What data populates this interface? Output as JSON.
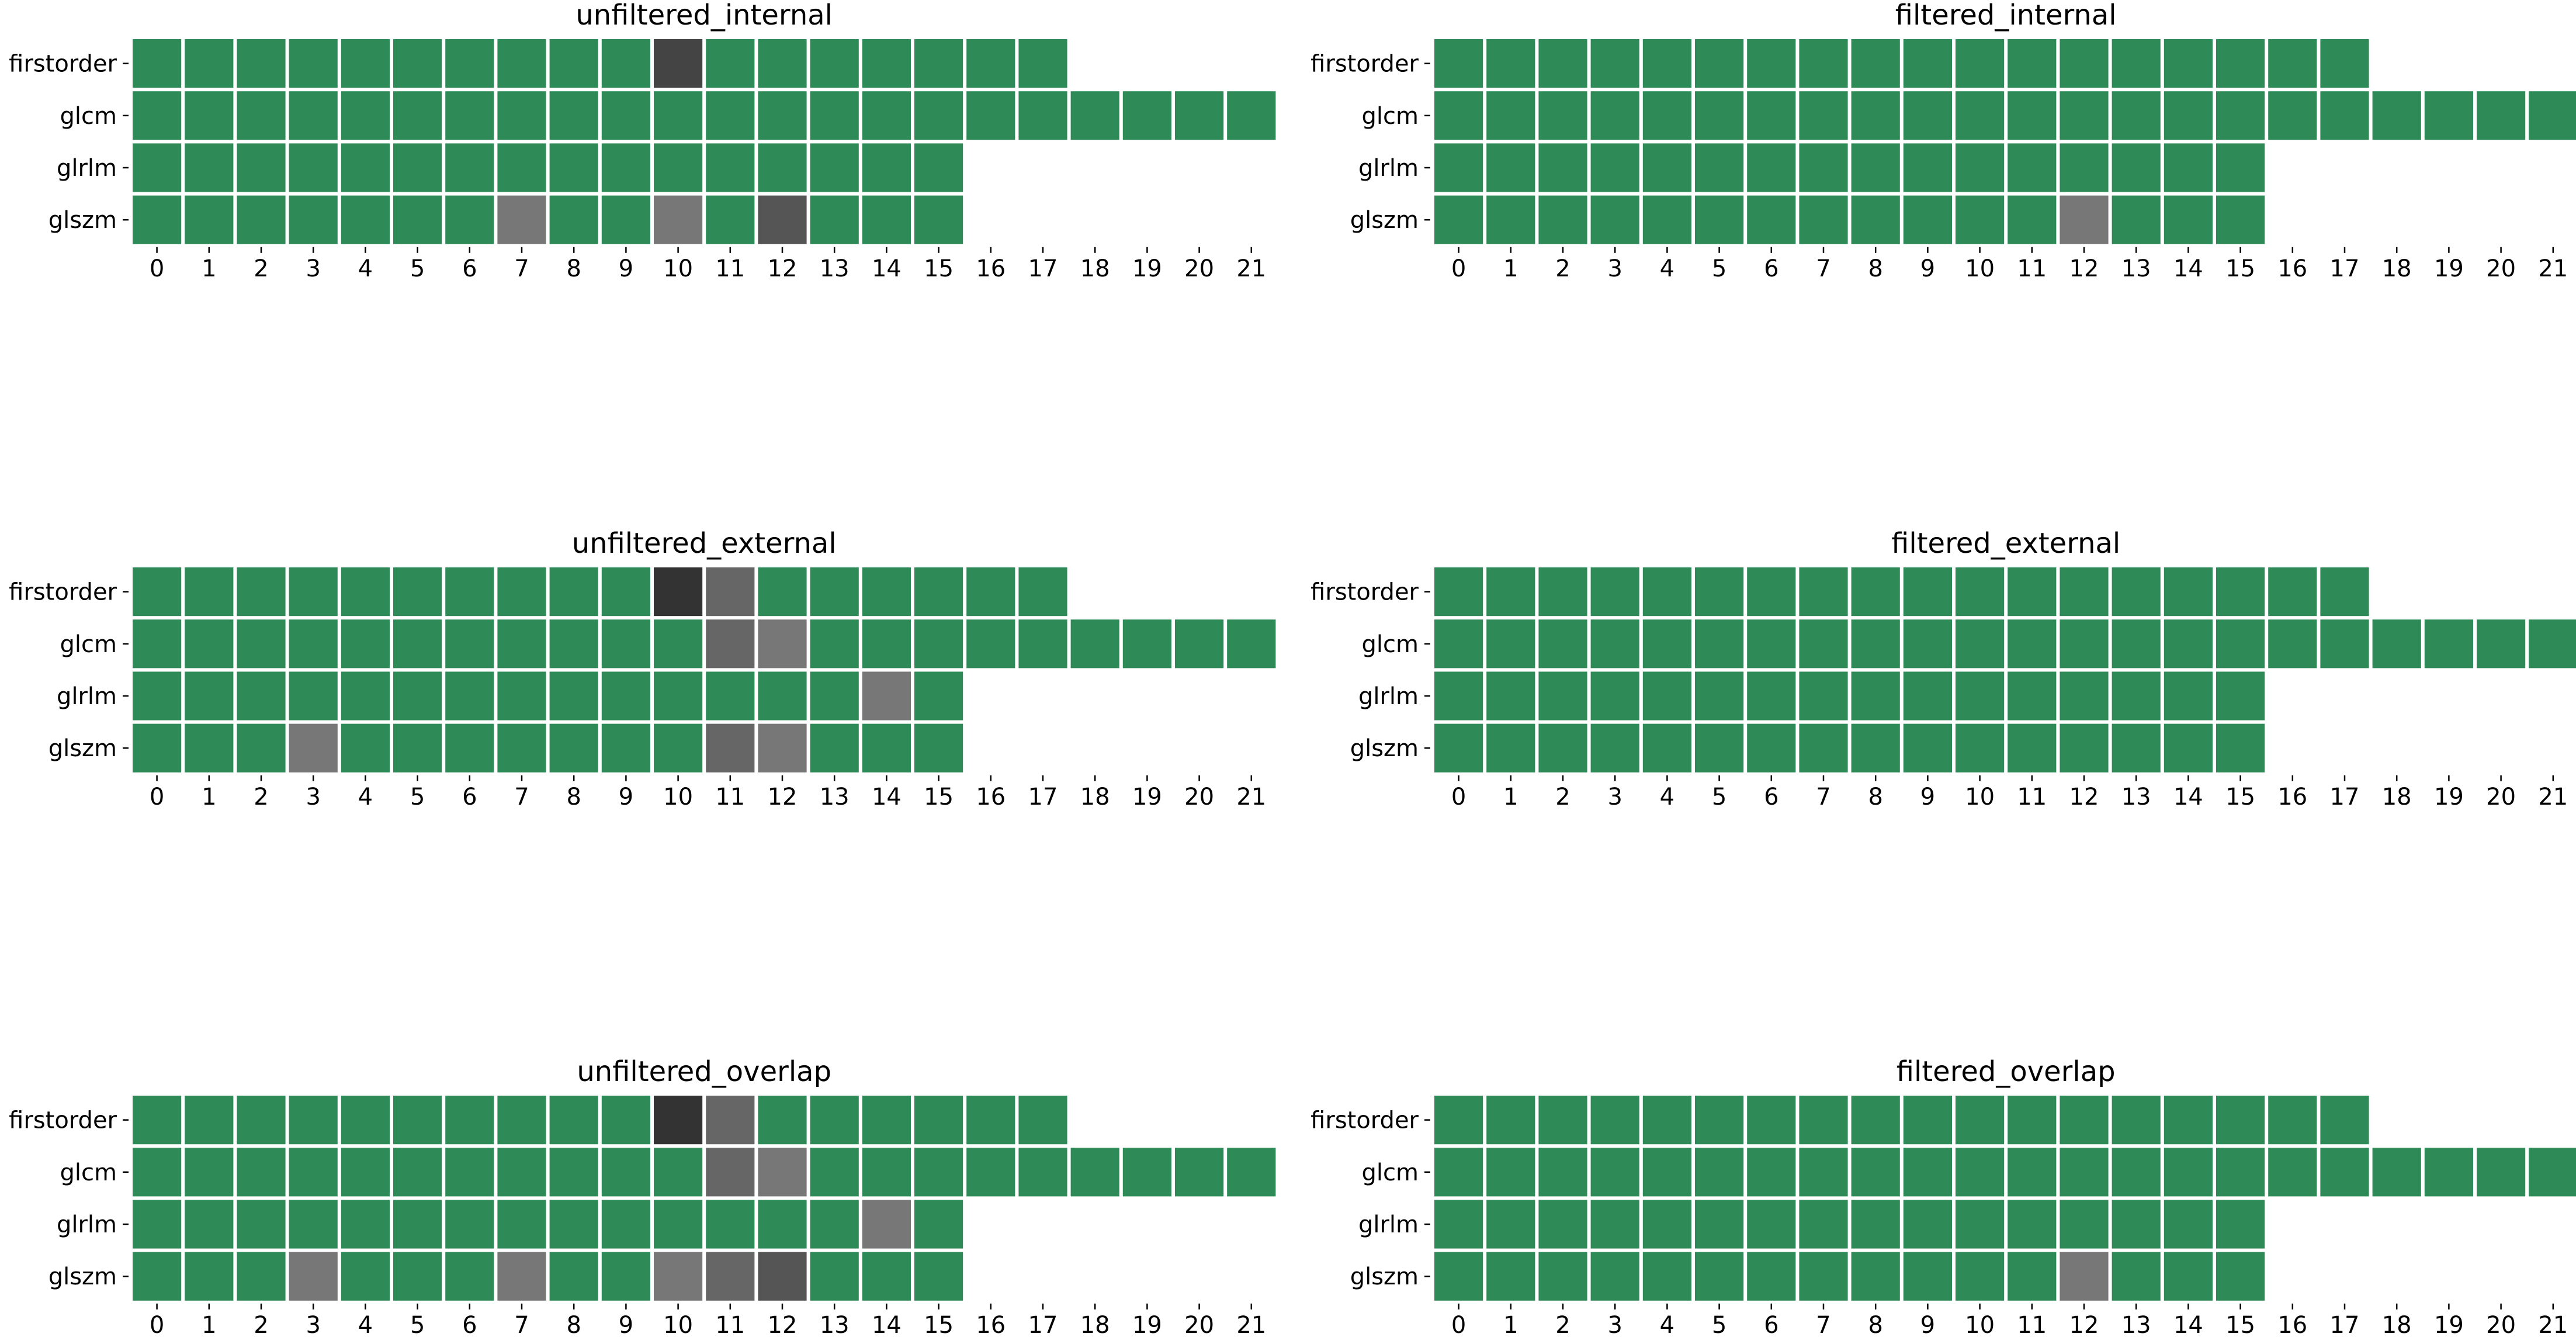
{
  "palette": {
    "good": "#2e8b57",
    "light_gray": "#777777",
    "mid_gray": "#666666",
    "dark_gray": "#555555",
    "darker_gray": "#444444",
    "darkest_gray": "#333333",
    "grid_line": "#ffffff"
  },
  "chart_data": [
    {
      "type": "heatmap",
      "title": "unfiltered_internal",
      "rows": [
        "firstorder",
        "glcm",
        "glrlm",
        "glszm"
      ],
      "columns": [
        "0",
        "1",
        "2",
        "3",
        "4",
        "5",
        "6",
        "7",
        "8",
        "9",
        "10",
        "11",
        "12",
        "13",
        "14",
        "15",
        "16",
        "17",
        "18",
        "19",
        "20",
        "21"
      ],
      "row_lengths": [
        18,
        22,
        16,
        16
      ],
      "flagged_cells": [
        {
          "row": "firstorder",
          "column": 10,
          "shade": "darker_gray"
        },
        {
          "row": "glszm",
          "column": 7,
          "shade": "light_gray"
        },
        {
          "row": "glszm",
          "column": 10,
          "shade": "light_gray"
        },
        {
          "row": "glszm",
          "column": 12,
          "shade": "dark_gray"
        }
      ]
    },
    {
      "type": "heatmap",
      "title": "filtered_internal",
      "rows": [
        "firstorder",
        "glcm",
        "glrlm",
        "glszm"
      ],
      "columns": [
        "0",
        "1",
        "2",
        "3",
        "4",
        "5",
        "6",
        "7",
        "8",
        "9",
        "10",
        "11",
        "12",
        "13",
        "14",
        "15",
        "16",
        "17",
        "18",
        "19",
        "20",
        "21"
      ],
      "row_lengths": [
        18,
        22,
        16,
        16
      ],
      "flagged_cells": [
        {
          "row": "glszm",
          "column": 12,
          "shade": "light_gray"
        }
      ]
    },
    {
      "type": "heatmap",
      "title": "unfiltered_external",
      "rows": [
        "firstorder",
        "glcm",
        "glrlm",
        "glszm"
      ],
      "columns": [
        "0",
        "1",
        "2",
        "3",
        "4",
        "5",
        "6",
        "7",
        "8",
        "9",
        "10",
        "11",
        "12",
        "13",
        "14",
        "15",
        "16",
        "17",
        "18",
        "19",
        "20",
        "21"
      ],
      "row_lengths": [
        18,
        22,
        16,
        16
      ],
      "flagged_cells": [
        {
          "row": "firstorder",
          "column": 10,
          "shade": "darkest_gray"
        },
        {
          "row": "firstorder",
          "column": 11,
          "shade": "mid_gray"
        },
        {
          "row": "glcm",
          "column": 11,
          "shade": "mid_gray"
        },
        {
          "row": "glcm",
          "column": 12,
          "shade": "light_gray"
        },
        {
          "row": "glrlm",
          "column": 14,
          "shade": "light_gray"
        },
        {
          "row": "glszm",
          "column": 3,
          "shade": "light_gray"
        },
        {
          "row": "glszm",
          "column": 11,
          "shade": "mid_gray"
        },
        {
          "row": "glszm",
          "column": 12,
          "shade": "light_gray"
        }
      ]
    },
    {
      "type": "heatmap",
      "title": "filtered_external",
      "rows": [
        "firstorder",
        "glcm",
        "glrlm",
        "glszm"
      ],
      "columns": [
        "0",
        "1",
        "2",
        "3",
        "4",
        "5",
        "6",
        "7",
        "8",
        "9",
        "10",
        "11",
        "12",
        "13",
        "14",
        "15",
        "16",
        "17",
        "18",
        "19",
        "20",
        "21"
      ],
      "row_lengths": [
        18,
        22,
        16,
        16
      ],
      "flagged_cells": []
    },
    {
      "type": "heatmap",
      "title": "unfiltered_overlap",
      "rows": [
        "firstorder",
        "glcm",
        "glrlm",
        "glszm"
      ],
      "columns": [
        "0",
        "1",
        "2",
        "3",
        "4",
        "5",
        "6",
        "7",
        "8",
        "9",
        "10",
        "11",
        "12",
        "13",
        "14",
        "15",
        "16",
        "17",
        "18",
        "19",
        "20",
        "21"
      ],
      "row_lengths": [
        18,
        22,
        16,
        16
      ],
      "flagged_cells": [
        {
          "row": "firstorder",
          "column": 10,
          "shade": "darkest_gray"
        },
        {
          "row": "firstorder",
          "column": 11,
          "shade": "mid_gray"
        },
        {
          "row": "glcm",
          "column": 11,
          "shade": "mid_gray"
        },
        {
          "row": "glcm",
          "column": 12,
          "shade": "light_gray"
        },
        {
          "row": "glrlm",
          "column": 14,
          "shade": "light_gray"
        },
        {
          "row": "glszm",
          "column": 3,
          "shade": "light_gray"
        },
        {
          "row": "glszm",
          "column": 7,
          "shade": "light_gray"
        },
        {
          "row": "glszm",
          "column": 10,
          "shade": "light_gray"
        },
        {
          "row": "glszm",
          "column": 11,
          "shade": "mid_gray"
        },
        {
          "row": "glszm",
          "column": 12,
          "shade": "dark_gray"
        }
      ]
    },
    {
      "type": "heatmap",
      "title": "filtered_overlap",
      "rows": [
        "firstorder",
        "glcm",
        "glrlm",
        "glszm"
      ],
      "columns": [
        "0",
        "1",
        "2",
        "3",
        "4",
        "5",
        "6",
        "7",
        "8",
        "9",
        "10",
        "11",
        "12",
        "13",
        "14",
        "15",
        "16",
        "17",
        "18",
        "19",
        "20",
        "21"
      ],
      "row_lengths": [
        18,
        22,
        16,
        16
      ],
      "flagged_cells": [
        {
          "row": "glszm",
          "column": 12,
          "shade": "light_gray"
        }
      ]
    }
  ]
}
